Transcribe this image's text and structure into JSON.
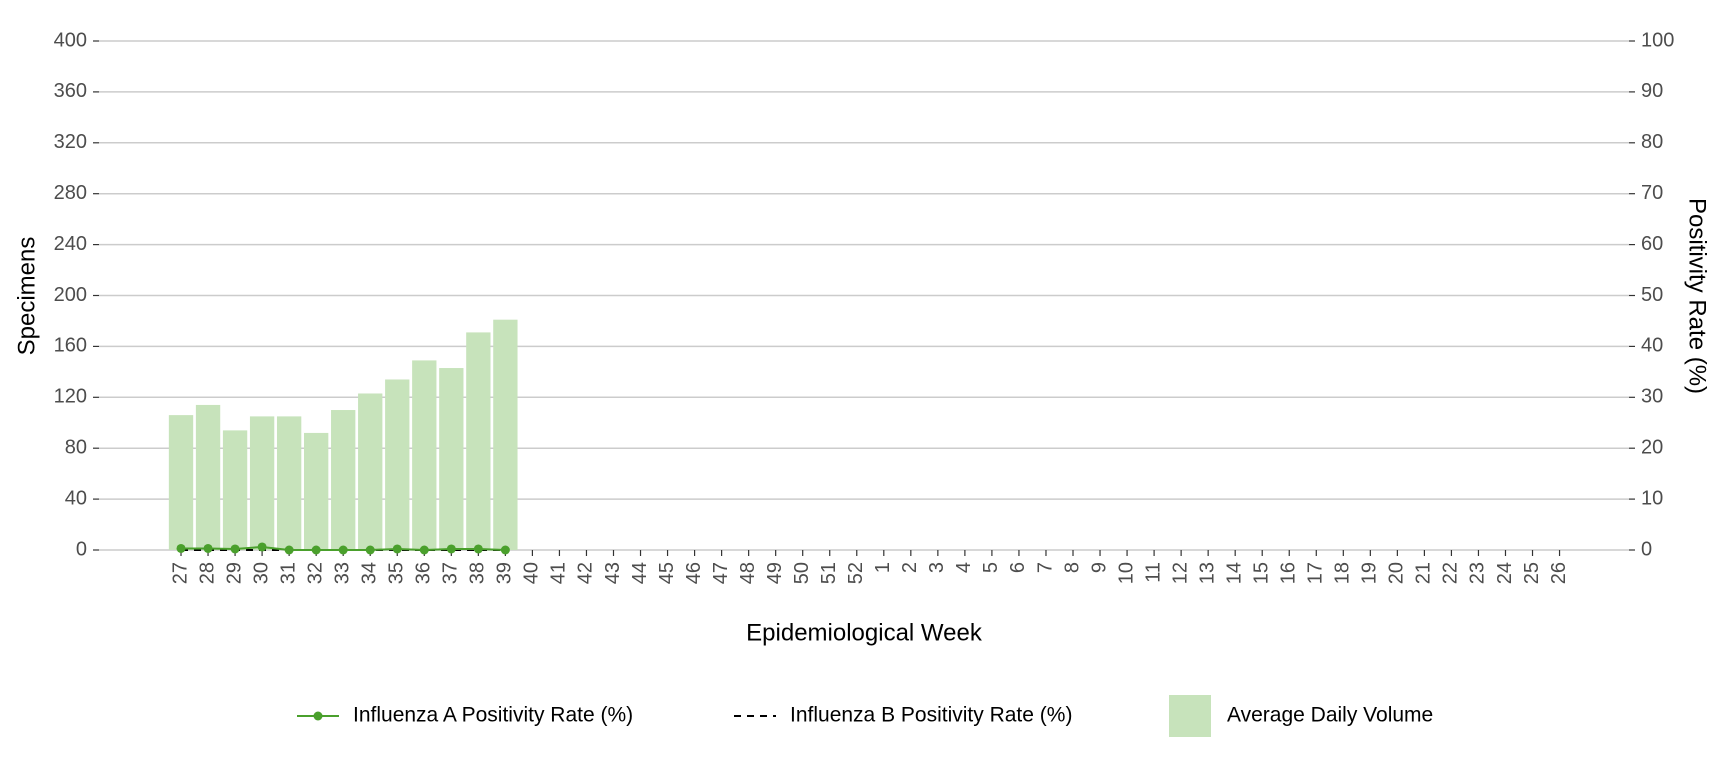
{
  "chart_data": {
    "type": "bar_line",
    "xlabel": "Epidemiological Week",
    "ylabel": "Specimens",
    "y2label": "Positivity Rate (%)",
    "categories": [
      "27",
      "28",
      "29",
      "30",
      "31",
      "32",
      "33",
      "34",
      "35",
      "36",
      "37",
      "38",
      "39",
      "40",
      "41",
      "42",
      "43",
      "44",
      "45",
      "46",
      "47",
      "48",
      "49",
      "50",
      "51",
      "52",
      "1",
      "2",
      "3",
      "4",
      "5",
      "6",
      "7",
      "8",
      "9",
      "10",
      "11",
      "12",
      "13",
      "14",
      "15",
      "16",
      "17",
      "18",
      "19",
      "20",
      "21",
      "22",
      "23",
      "24",
      "25",
      "26"
    ],
    "ylim": [
      0,
      400
    ],
    "yticks": [
      0,
      40,
      80,
      120,
      160,
      200,
      240,
      280,
      320,
      360,
      400
    ],
    "y2lim": [
      0,
      100
    ],
    "y2ticks": [
      0,
      10,
      20,
      30,
      40,
      50,
      60,
      70,
      80,
      90,
      100
    ],
    "grid": true,
    "series": [
      {
        "name": "Average Daily Volume",
        "type": "bar",
        "color": "#c7e3bb",
        "values": [
          106,
          114,
          94,
          105,
          105,
          92,
          110,
          123,
          134,
          149,
          143,
          171,
          181,
          null,
          null,
          null,
          null,
          null,
          null,
          null,
          null,
          null,
          null,
          null,
          null,
          null,
          null,
          null,
          null,
          null,
          null,
          null,
          null,
          null,
          null,
          null,
          null,
          null,
          null,
          null,
          null,
          null,
          null,
          null,
          null,
          null,
          null,
          null,
          null,
          null,
          null,
          null
        ]
      },
      {
        "name": "Influenza A Positivity Rate (%)",
        "type": "line",
        "axis": "y2",
        "color": "#4aa02c",
        "dash": false,
        "markers": true,
        "values": [
          0.3,
          0.3,
          0.2,
          0.6,
          0,
          0,
          0,
          0,
          0.2,
          0,
          0.2,
          0.2,
          0,
          null,
          null,
          null,
          null,
          null,
          null,
          null,
          null,
          null,
          null,
          null,
          null,
          null,
          null,
          null,
          null,
          null,
          null,
          null,
          null,
          null,
          null,
          null,
          null,
          null,
          null,
          null,
          null,
          null,
          null,
          null,
          null,
          null,
          null,
          null,
          null,
          null,
          null,
          null
        ]
      },
      {
        "name": "Influenza B Positivity Rate (%)",
        "type": "line",
        "axis": "y2",
        "color": "#000000",
        "dash": true,
        "markers": false,
        "values": [
          0,
          0,
          0,
          0,
          0,
          0,
          0,
          0,
          0,
          0,
          0,
          0,
          0,
          null,
          null,
          null,
          null,
          null,
          null,
          null,
          null,
          null,
          null,
          null,
          null,
          null,
          null,
          null,
          null,
          null,
          null,
          null,
          null,
          null,
          null,
          null,
          null,
          null,
          null,
          null,
          null,
          null,
          null,
          null,
          null,
          null,
          null,
          null,
          null,
          null,
          null,
          null
        ]
      }
    ]
  }
}
